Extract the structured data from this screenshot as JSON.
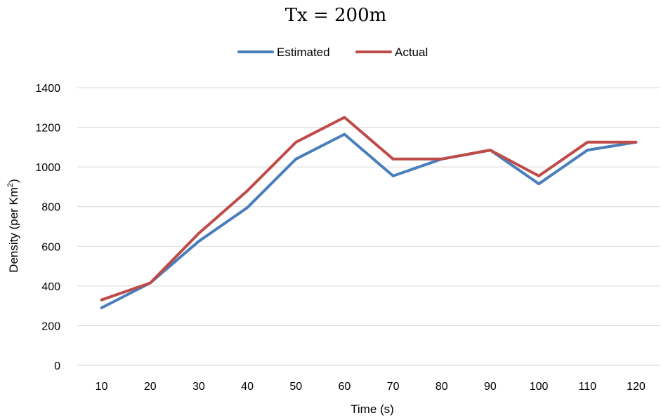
{
  "chart_data": {
    "type": "line",
    "title": "Tx = 200m",
    "xlabel": "Time (s)",
    "ylabel_parts": [
      "Density (per Km",
      "2",
      ")"
    ],
    "x": [
      10,
      20,
      30,
      40,
      50,
      60,
      70,
      80,
      90,
      100,
      110,
      120
    ],
    "ylim": [
      0,
      1400
    ],
    "yticks": [
      0,
      200,
      400,
      600,
      800,
      1000,
      1200,
      1400
    ],
    "grid": true,
    "legend_position": "top",
    "series": [
      {
        "name": "Estimated",
        "color": "#4a7ebb",
        "values": [
          290,
          415,
          625,
          795,
          1040,
          1165,
          955,
          1040,
          1085,
          915,
          1085,
          1125
        ]
      },
      {
        "name": "Actual",
        "color": "#be4b48",
        "values": [
          330,
          415,
          665,
          880,
          1125,
          1250,
          1040,
          1040,
          1085,
          955,
          1125,
          1125
        ]
      }
    ]
  }
}
